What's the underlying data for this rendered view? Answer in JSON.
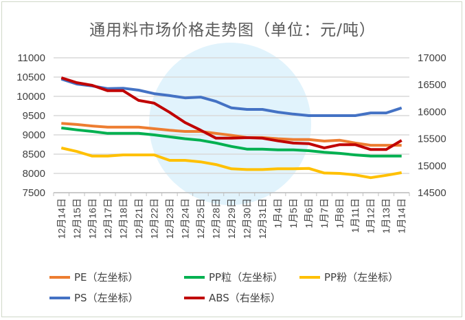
{
  "chart_data": {
    "type": "line",
    "title": "通用料市场价格走势图（单位：元/吨）",
    "categories": [
      "12月14日",
      "12月15日",
      "12月16日",
      "12月17日",
      "12月18日",
      "12月21日",
      "12月22日",
      "12月23日",
      "12月24日",
      "12月25日",
      "12月28日",
      "12月29日",
      "12月30日",
      "12月31日",
      "1月4日",
      "1月5日",
      "1月6日",
      "1月7日",
      "1月8日",
      "1月11日",
      "1月12日",
      "1月13日",
      "1月14日"
    ],
    "y_left": {
      "min": 7500,
      "max": 11000,
      "step": 500,
      "ticks": [
        "7500",
        "8000",
        "8500",
        "9000",
        "9500",
        "10000",
        "10500",
        "11000"
      ]
    },
    "y_right": {
      "min": 14500,
      "max": 17000,
      "step": 500,
      "ticks": [
        "14500",
        "15000",
        "15500",
        "16000",
        "16500",
        "17000"
      ]
    },
    "grid": true,
    "legend_position": "bottom",
    "series": [
      {
        "name": "PE（左坐标）",
        "axis": "left",
        "color": "#ED7D31",
        "values": [
          9300,
          9270,
          9230,
          9200,
          9200,
          9200,
          9160,
          9120,
          9090,
          9090,
          9040,
          8990,
          8930,
          8930,
          8900,
          8880,
          8880,
          8840,
          8860,
          8790,
          8730,
          8730,
          8730
        ]
      },
      {
        "name": "PP粒（左坐标）",
        "axis": "left",
        "color": "#00B050",
        "values": [
          9180,
          9130,
          9090,
          9040,
          9040,
          9040,
          9000,
          8950,
          8900,
          8860,
          8790,
          8700,
          8630,
          8630,
          8610,
          8610,
          8590,
          8550,
          8520,
          8480,
          8450,
          8450,
          8450
        ]
      },
      {
        "name": "PP粉（左坐标）",
        "axis": "left",
        "color": "#FFC000",
        "values": [
          8660,
          8570,
          8450,
          8450,
          8480,
          8480,
          8480,
          8340,
          8340,
          8300,
          8230,
          8120,
          8100,
          8100,
          8120,
          8120,
          8130,
          8010,
          8000,
          7960,
          7890,
          7950,
          8020
        ]
      },
      {
        "name": "PS（左坐标）",
        "axis": "left",
        "color": "#4472C4",
        "values": [
          10450,
          10320,
          10270,
          10200,
          10210,
          10160,
          10070,
          10020,
          9960,
          9980,
          9870,
          9700,
          9660,
          9660,
          9590,
          9540,
          9500,
          9500,
          9500,
          9500,
          9570,
          9570,
          9700
        ]
      },
      {
        "name": "ABS（右坐标）",
        "axis": "right",
        "color": "#C00000",
        "values": [
          16630,
          16540,
          16490,
          16390,
          16390,
          16210,
          16160,
          15990,
          15800,
          15660,
          15510,
          15510,
          15520,
          15510,
          15460,
          15420,
          15410,
          15330,
          15390,
          15390,
          15300,
          15300,
          15470
        ]
      }
    ]
  }
}
